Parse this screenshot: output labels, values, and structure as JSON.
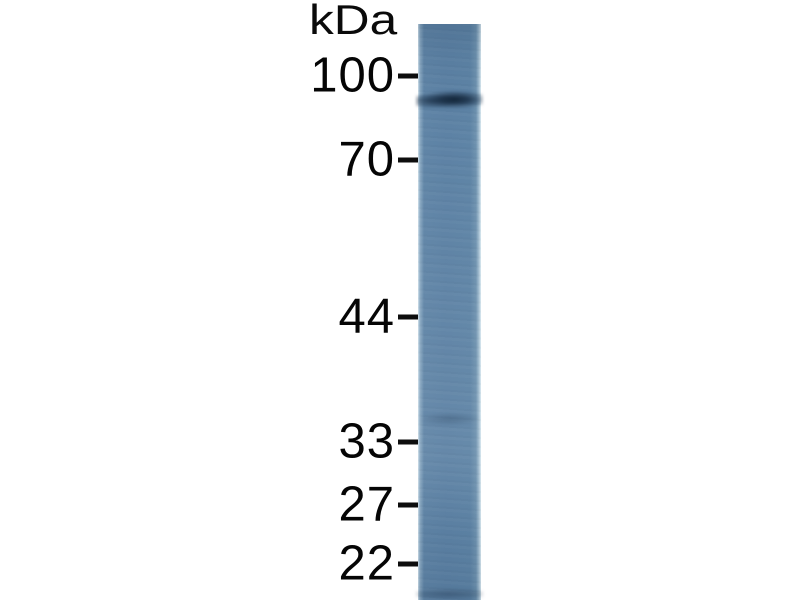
{
  "figure": {
    "type": "western-blot",
    "unit_label": "kDa",
    "markers": [
      {
        "label": "100"
      },
      {
        "label": "70"
      },
      {
        "label": "44"
      },
      {
        "label": "33"
      },
      {
        "label": "27"
      },
      {
        "label": "22"
      }
    ],
    "lane": {
      "count": 1,
      "lane_color": "#5d82a5",
      "lane_edge_highlight": "#cfe0eb",
      "background_color": "#ffffff",
      "text_color": "#000000"
    },
    "bands": [
      {
        "at_marker": "100",
        "intensity": "strong",
        "color": "#16293d"
      },
      {
        "between_markers": "44 and 33",
        "intensity": "very faint"
      },
      {
        "location": "bottom edge of lane",
        "intensity": "faint smudge"
      }
    ]
  }
}
